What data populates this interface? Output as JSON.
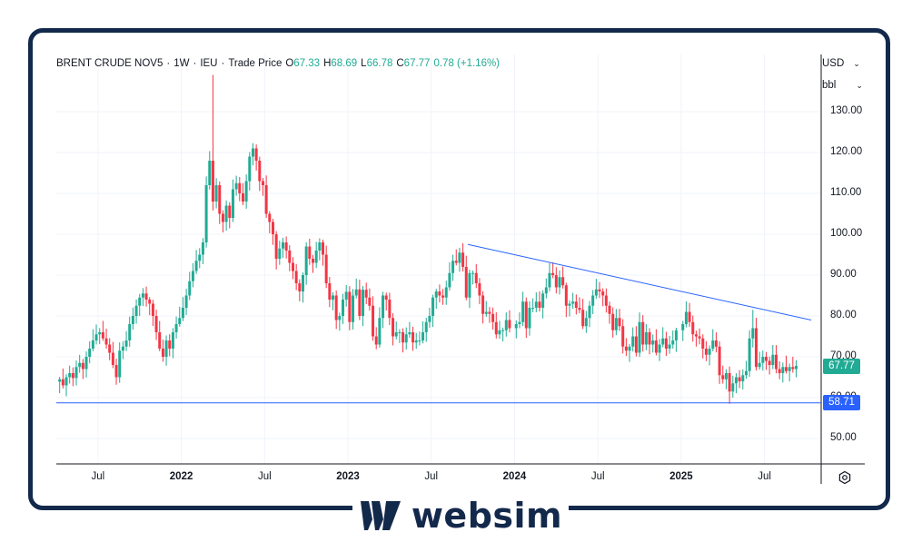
{
  "header": {
    "symbol": "BRENT CRUDE NOV5",
    "interval": "1W",
    "exchange": "IEU",
    "price_type": "Trade Price",
    "o_label": "O",
    "o_value": "67.33",
    "h_label": "H",
    "h_value": "68.69",
    "l_label": "L",
    "l_value": "66.78",
    "c_label": "C",
    "c_value": "67.77",
    "change": "0.78 (+1.16%)"
  },
  "controls": {
    "currency": "USD",
    "unit": "bbl"
  },
  "brand": {
    "name": "websim"
  },
  "colors": {
    "up": "#22ab94",
    "down": "#f23645",
    "trendline": "#2962ff",
    "frame": "#13294b",
    "grid": "#f0f3fa"
  },
  "chart_data": {
    "type": "candlestick",
    "title": "BRENT CRUDE NOV5",
    "currency": "USD",
    "unit": "bbl",
    "y_range": [
      43,
      140
    ],
    "y_ticks": [
      "50.00",
      "60.00",
      "70.00",
      "80.00",
      "90.00",
      "100.00",
      "110.00",
      "120.00",
      "130.00"
    ],
    "x_ticks": [
      {
        "label": "Jul",
        "year": false,
        "t": 2021.5
      },
      {
        "label": "2022",
        "year": true,
        "t": 2022.0
      },
      {
        "label": "Jul",
        "year": false,
        "t": 2022.5
      },
      {
        "label": "2023",
        "year": true,
        "t": 2023.0
      },
      {
        "label": "Jul",
        "year": false,
        "t": 2023.5
      },
      {
        "label": "2024",
        "year": true,
        "t": 2024.0
      },
      {
        "label": "Jul",
        "year": false,
        "t": 2024.5
      },
      {
        "label": "2025",
        "year": true,
        "t": 2025.0
      },
      {
        "label": "Jul",
        "year": false,
        "t": 2025.5
      }
    ],
    "x_range": [
      2021.25,
      2025.84
    ],
    "last_price": "67.77",
    "support_level": "58.71",
    "trendline": {
      "start": {
        "t": 2023.72,
        "price": 97.5
      },
      "end": {
        "t": 2025.78,
        "price": 79.0
      }
    },
    "support_line": {
      "price": 58.71
    },
    "weekly_closes": [
      [
        2021.27,
        64.5
      ],
      [
        2021.29,
        63.0
      ],
      [
        2021.31,
        65.0
      ],
      [
        2021.33,
        66.0
      ],
      [
        2021.35,
        64.8
      ],
      [
        2021.37,
        67.5
      ],
      [
        2021.39,
        68.5
      ],
      [
        2021.41,
        67.0
      ],
      [
        2021.43,
        70.0
      ],
      [
        2021.45,
        72.0
      ],
      [
        2021.47,
        74.0
      ],
      [
        2021.49,
        75.5
      ],
      [
        2021.51,
        76.0
      ],
      [
        2021.53,
        74.5
      ],
      [
        2021.55,
        73.0
      ],
      [
        2021.57,
        71.0
      ],
      [
        2021.59,
        68.0
      ],
      [
        2021.61,
        65.0
      ],
      [
        2021.63,
        71.5
      ],
      [
        2021.65,
        72.5
      ],
      [
        2021.67,
        74.0
      ],
      [
        2021.69,
        78.0
      ],
      [
        2021.71,
        80.0
      ],
      [
        2021.73,
        82.5
      ],
      [
        2021.75,
        84.5
      ],
      [
        2021.77,
        85.5
      ],
      [
        2021.79,
        84.0
      ],
      [
        2021.81,
        83.0
      ],
      [
        2021.83,
        80.0
      ],
      [
        2021.85,
        76.0
      ],
      [
        2021.87,
        72.0
      ],
      [
        2021.89,
        70.0
      ],
      [
        2021.91,
        74.0
      ],
      [
        2021.93,
        72.0
      ],
      [
        2021.95,
        76.0
      ],
      [
        2021.97,
        78.0
      ],
      [
        2021.99,
        79.5
      ],
      [
        2022.01,
        82.0
      ],
      [
        2022.03,
        85.0
      ],
      [
        2022.05,
        88.5
      ],
      [
        2022.07,
        91.0
      ],
      [
        2022.09,
        93.5
      ],
      [
        2022.11,
        95.0
      ],
      [
        2022.13,
        98.0
      ],
      [
        2022.15,
        112.0
      ],
      [
        2022.17,
        118.0
      ],
      [
        2022.19,
        108.0
      ],
      [
        2022.21,
        112.0
      ],
      [
        2022.23,
        105.0
      ],
      [
        2022.25,
        103.0
      ],
      [
        2022.27,
        107.0
      ],
      [
        2022.29,
        104.0
      ],
      [
        2022.31,
        111.0
      ],
      [
        2022.33,
        112.5
      ],
      [
        2022.35,
        110.0
      ],
      [
        2022.37,
        108.0
      ],
      [
        2022.39,
        113.0
      ],
      [
        2022.41,
        119.0
      ],
      [
        2022.43,
        121.0
      ],
      [
        2022.45,
        118.0
      ],
      [
        2022.47,
        113.0
      ],
      [
        2022.49,
        112.0
      ],
      [
        2022.51,
        105.0
      ],
      [
        2022.53,
        103.0
      ],
      [
        2022.55,
        100.0
      ],
      [
        2022.57,
        94.0
      ],
      [
        2022.59,
        96.5
      ],
      [
        2022.61,
        98.0
      ],
      [
        2022.63,
        96.0
      ],
      [
        2022.65,
        93.0
      ],
      [
        2022.67,
        91.0
      ],
      [
        2022.69,
        88.0
      ],
      [
        2022.71,
        86.0
      ],
      [
        2022.73,
        90.0
      ],
      [
        2022.75,
        97.0
      ],
      [
        2022.77,
        94.0
      ],
      [
        2022.79,
        93.0
      ],
      [
        2022.81,
        96.0
      ],
      [
        2022.83,
        98.0
      ],
      [
        2022.85,
        95.0
      ],
      [
        2022.87,
        88.0
      ],
      [
        2022.89,
        84.0
      ],
      [
        2022.91,
        85.0
      ],
      [
        2022.93,
        79.0
      ],
      [
        2022.95,
        80.0
      ],
      [
        2022.97,
        84.0
      ],
      [
        2022.99,
        85.9
      ],
      [
        2023.01,
        78.5
      ],
      [
        2023.03,
        85.0
      ],
      [
        2023.05,
        86.5
      ],
      [
        2023.07,
        80.0
      ],
      [
        2023.09,
        86.4
      ],
      [
        2023.11,
        84.5
      ],
      [
        2023.13,
        82.5
      ],
      [
        2023.15,
        75.0
      ],
      [
        2023.17,
        73.0
      ],
      [
        2023.19,
        79.5
      ],
      [
        2023.21,
        85.0
      ],
      [
        2023.23,
        84.0
      ],
      [
        2023.25,
        79.5
      ],
      [
        2023.27,
        75.0
      ],
      [
        2023.29,
        76.0
      ],
      [
        2023.31,
        76.0
      ],
      [
        2023.33,
        73.5
      ],
      [
        2023.35,
        75.5
      ],
      [
        2023.37,
        76.0
      ],
      [
        2023.39,
        73.5
      ],
      [
        2023.41,
        74.0
      ],
      [
        2023.43,
        74.0
      ],
      [
        2023.45,
        76.0
      ],
      [
        2023.47,
        78.5
      ],
      [
        2023.49,
        80.0
      ],
      [
        2023.51,
        84.5
      ],
      [
        2023.53,
        86.0
      ],
      [
        2023.55,
        85.0
      ],
      [
        2023.57,
        84.5
      ],
      [
        2023.59,
        87.0
      ],
      [
        2023.61,
        90.5
      ],
      [
        2023.63,
        93.5
      ],
      [
        2023.65,
        93.0
      ],
      [
        2023.67,
        95.5
      ],
      [
        2023.69,
        92.0
      ],
      [
        2023.71,
        84.5
      ],
      [
        2023.73,
        90.5
      ],
      [
        2023.75,
        90.5
      ],
      [
        2023.77,
        88.0
      ],
      [
        2023.79,
        85.0
      ],
      [
        2023.81,
        80.5
      ],
      [
        2023.83,
        81.0
      ],
      [
        2023.85,
        80.5
      ],
      [
        2023.87,
        78.5
      ],
      [
        2023.89,
        75.5
      ],
      [
        2023.91,
        76.5
      ],
      [
        2023.93,
        76.5
      ],
      [
        2023.95,
        79.0
      ],
      [
        2023.97,
        77.0
      ],
      [
        2024.01,
        78.0
      ],
      [
        2024.03,
        78.5
      ],
      [
        2024.05,
        83.5
      ],
      [
        2024.07,
        77.0
      ],
      [
        2024.09,
        82.0
      ],
      [
        2024.11,
        82.0
      ],
      [
        2024.13,
        83.5
      ],
      [
        2024.15,
        82.0
      ],
      [
        2024.17,
        85.5
      ],
      [
        2024.19,
        87.0
      ],
      [
        2024.21,
        90.5
      ],
      [
        2024.23,
        90.0
      ],
      [
        2024.25,
        87.0
      ],
      [
        2024.27,
        89.5
      ],
      [
        2024.29,
        87.5
      ],
      [
        2024.31,
        82.5
      ],
      [
        2024.33,
        83.0
      ],
      [
        2024.35,
        83.5
      ],
      [
        2024.37,
        82.0
      ],
      [
        2024.39,
        81.5
      ],
      [
        2024.41,
        77.5
      ],
      [
        2024.43,
        79.5
      ],
      [
        2024.45,
        82.5
      ],
      [
        2024.47,
        85.0
      ],
      [
        2024.49,
        86.5
      ],
      [
        2024.51,
        86.0
      ],
      [
        2024.53,
        85.0
      ],
      [
        2024.55,
        82.5
      ],
      [
        2024.57,
        80.5
      ],
      [
        2024.59,
        76.5
      ],
      [
        2024.61,
        79.5
      ],
      [
        2024.63,
        77.5
      ],
      [
        2024.65,
        72.5
      ],
      [
        2024.67,
        71.5
      ],
      [
        2024.69,
        72.5
      ],
      [
        2024.71,
        75.0
      ],
      [
        2024.73,
        71.0
      ],
      [
        2024.75,
        78.5
      ],
      [
        2024.77,
        73.0
      ],
      [
        2024.79,
        76.0
      ],
      [
        2024.81,
        73.0
      ],
      [
        2024.83,
        74.0
      ],
      [
        2024.85,
        71.0
      ],
      [
        2024.87,
        73.0
      ],
      [
        2024.89,
        74.5
      ],
      [
        2024.91,
        72.0
      ],
      [
        2024.93,
        73.0
      ],
      [
        2024.95,
        74.0
      ],
      [
        2024.97,
        76.5
      ],
      [
        2025.01,
        78.0
      ],
      [
        2025.03,
        81.0
      ],
      [
        2025.05,
        78.5
      ],
      [
        2025.07,
        75.5
      ],
      [
        2025.09,
        75.0
      ],
      [
        2025.11,
        74.5
      ],
      [
        2025.13,
        72.0
      ],
      [
        2025.15,
        70.5
      ],
      [
        2025.17,
        72.0
      ],
      [
        2025.19,
        74.0
      ],
      [
        2025.21,
        72.5
      ],
      [
        2025.23,
        65.5
      ],
      [
        2025.25,
        64.5
      ],
      [
        2025.27,
        66.0
      ],
      [
        2025.29,
        61.5
      ],
      [
        2025.31,
        63.5
      ],
      [
        2025.33,
        65.0
      ],
      [
        2025.35,
        64.0
      ],
      [
        2025.37,
        65.5
      ],
      [
        2025.39,
        66.5
      ],
      [
        2025.41,
        74.5
      ],
      [
        2025.43,
        77.0
      ],
      [
        2025.45,
        67.5
      ],
      [
        2025.47,
        68.5
      ],
      [
        2025.49,
        70.0
      ],
      [
        2025.51,
        69.0
      ],
      [
        2025.53,
        68.0
      ],
      [
        2025.55,
        70.5
      ],
      [
        2025.57,
        67.0
      ],
      [
        2025.59,
        66.0
      ],
      [
        2025.61,
        67.5
      ],
      [
        2025.63,
        66.5
      ],
      [
        2025.65,
        67.5
      ],
      [
        2025.67,
        67.0
      ],
      [
        2025.69,
        67.77
      ]
    ]
  }
}
